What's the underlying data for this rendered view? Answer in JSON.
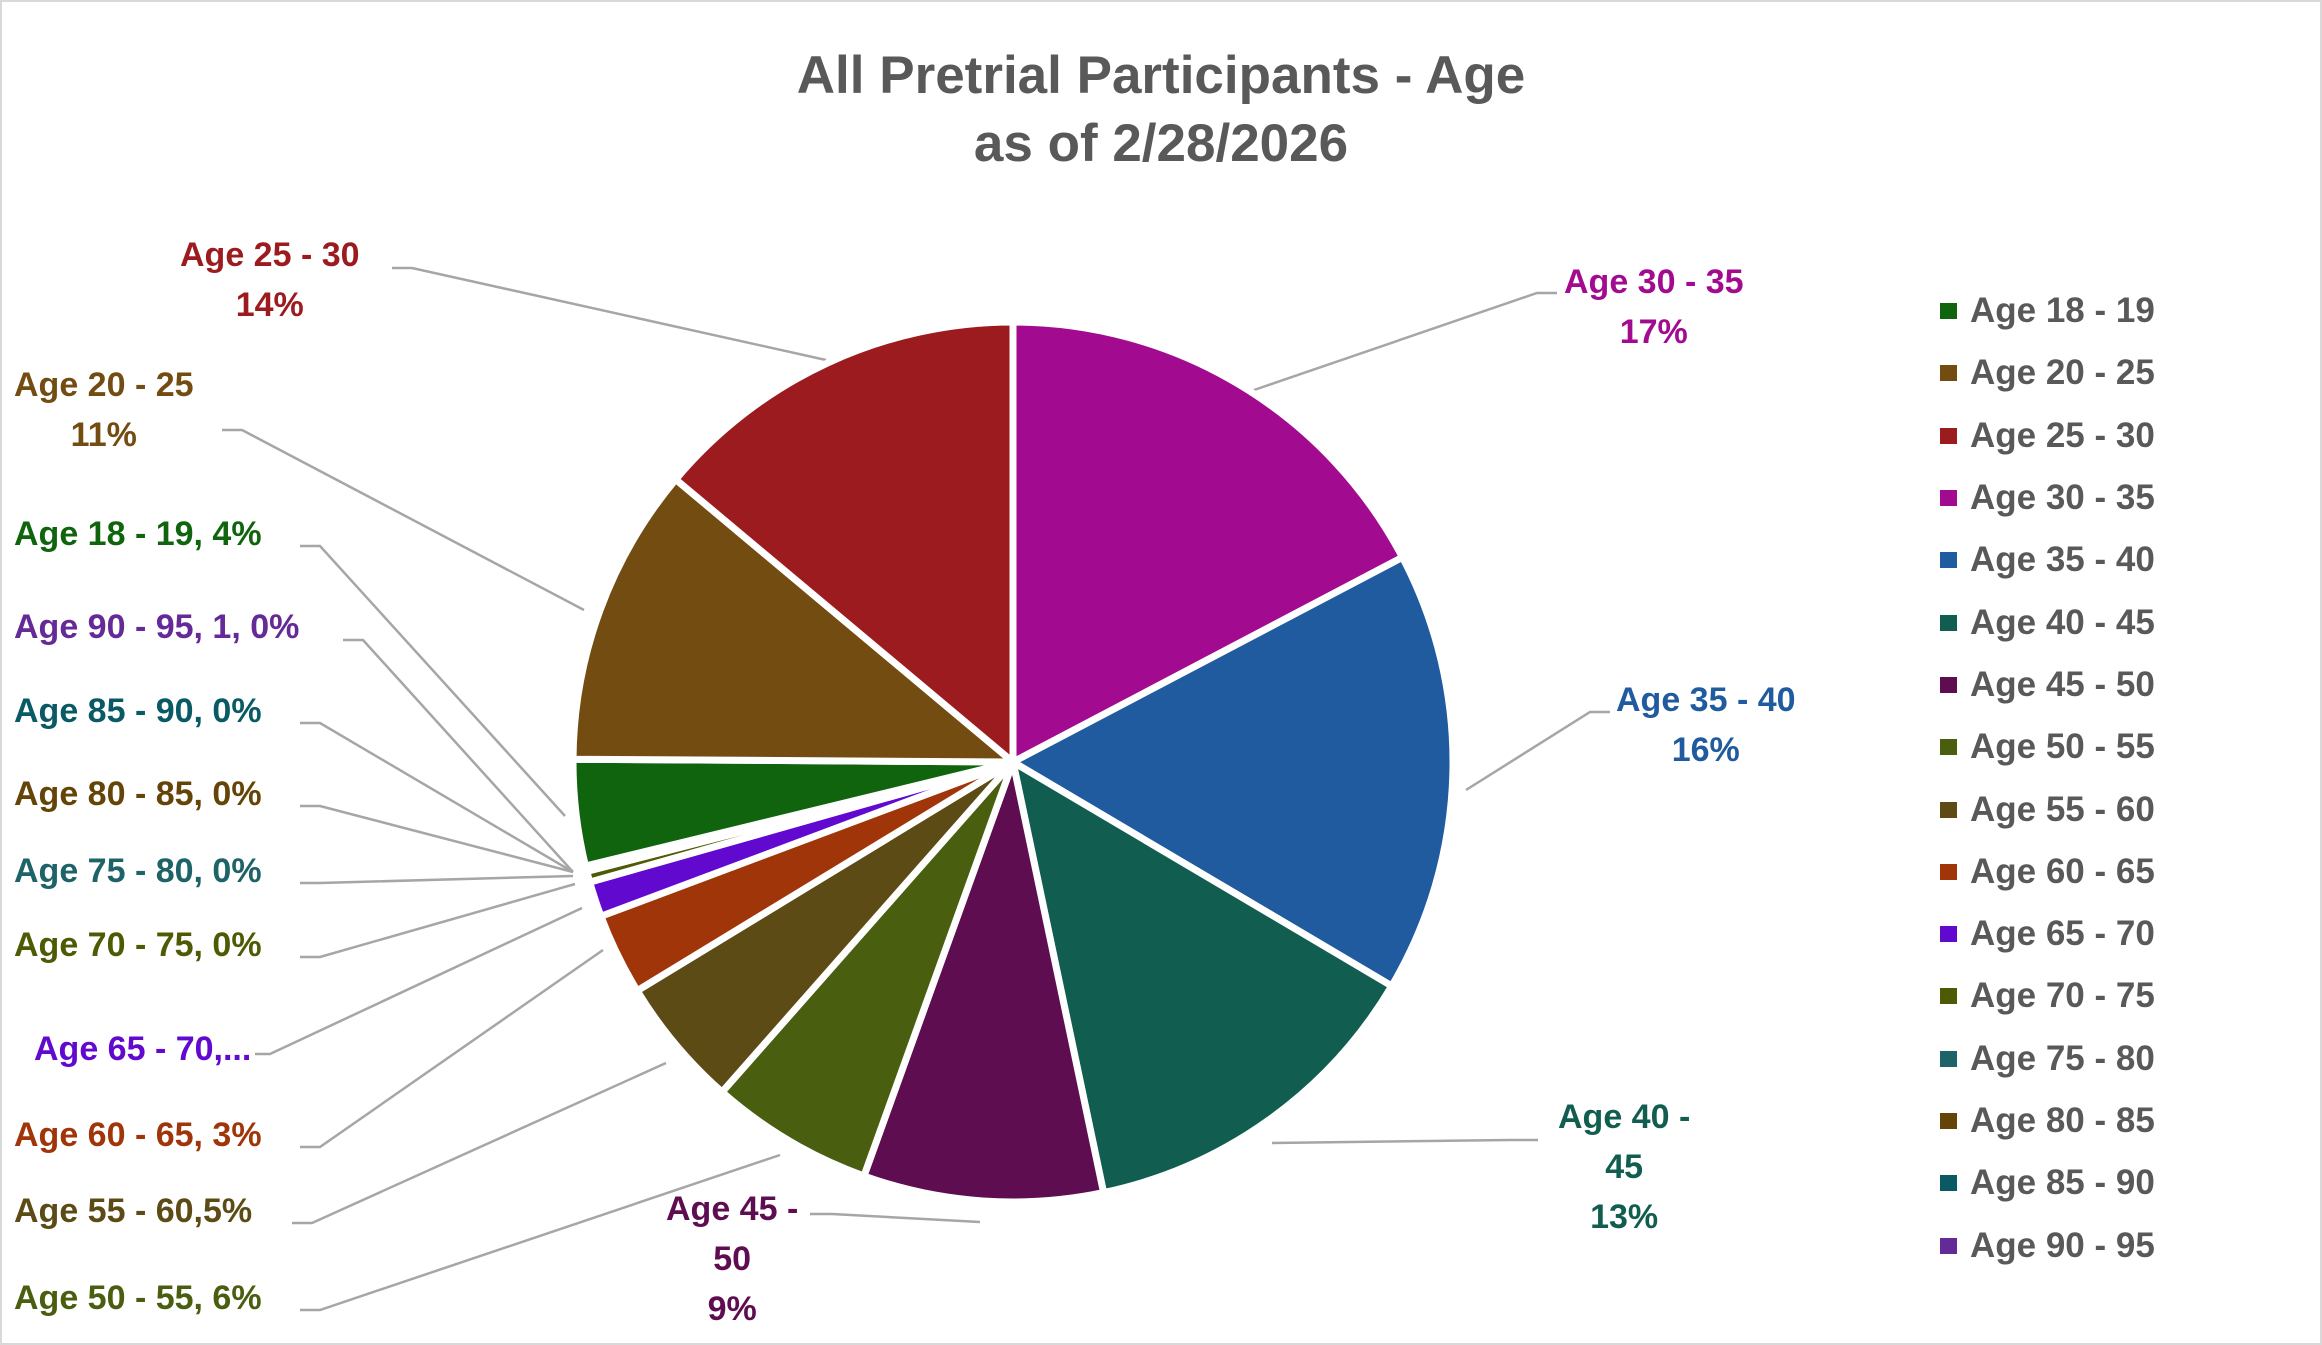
{
  "chart_data": {
    "type": "pie",
    "title": "All Pretrial Participants - Age",
    "subtitle": "as of 2/28/2026",
    "legend_position": "right",
    "start_angle_deg": 0,
    "direction": "clockwise",
    "slices": [
      {
        "name": "Age 30 - 35",
        "value": 17.3,
        "color": "#a20b8f"
      },
      {
        "name": "Age 35 - 40",
        "value": 16.2,
        "color": "#1f5b9e"
      },
      {
        "name": "Age 40 - 45",
        "value": 13.2,
        "color": "#115e50"
      },
      {
        "name": "Age 45 - 50",
        "value": 8.8,
        "color": "#5e0e50"
      },
      {
        "name": "Age 50 - 55",
        "value": 6.0,
        "color": "#4a5e10"
      },
      {
        "name": "Age 55 - 60",
        "value": 4.8,
        "color": "#5d4b15"
      },
      {
        "name": "Age 60 - 65",
        "value": 3.0,
        "color": "#a0350a"
      },
      {
        "name": "Age 65 - 70",
        "value": 1.3,
        "color": "#6209d0"
      },
      {
        "name": "Age 70 - 75",
        "value": 0.4,
        "color": "#4f5a05"
      },
      {
        "name": "Age 75 - 80",
        "value": 0.05,
        "color": "#1d6368"
      },
      {
        "name": "Age 80 - 85",
        "value": 0.05,
        "color": "#654408"
      },
      {
        "name": "Age 85 - 90",
        "value": 0.05,
        "color": "#0a5a66"
      },
      {
        "name": "Age 90 - 95",
        "value": 0.05,
        "color": "#642a97"
      },
      {
        "name": "Age 18 - 19",
        "value": 3.9,
        "color": "#10640d"
      },
      {
        "name": "Age 20 - 25",
        "value": 11.0,
        "color": "#734c11"
      },
      {
        "name": "Age 25 - 30",
        "value": 13.9,
        "color": "#9c1b1f"
      }
    ],
    "data_labels": [
      {
        "series": "Age 25 - 30",
        "lines": [
          "Age 25 - 30",
          "14%"
        ]
      },
      {
        "series": "Age 20 - 25",
        "lines": [
          "Age 20 - 25",
          "11%"
        ]
      },
      {
        "series": "Age 18 - 19",
        "lines": [
          "Age 18 - 19, 4%"
        ]
      },
      {
        "series": "Age 90 - 95",
        "lines": [
          "Age 90 - 95, 1, 0%"
        ]
      },
      {
        "series": "Age 85 - 90",
        "lines": [
          "Age 85 - 90, 0%"
        ]
      },
      {
        "series": "Age 80 - 85",
        "lines": [
          "Age 80 - 85, 0%"
        ]
      },
      {
        "series": "Age 75 - 80",
        "lines": [
          "Age 75 - 80, 0%"
        ]
      },
      {
        "series": "Age 70 - 75",
        "lines": [
          "Age 70 - 75, 0%"
        ]
      },
      {
        "series": "Age 65 - 70",
        "lines": [
          "Age 65 - 70,..."
        ]
      },
      {
        "series": "Age 60 - 65",
        "lines": [
          "Age 60 - 65, 3%"
        ]
      },
      {
        "series": "Age 55 - 60",
        "lines": [
          "Age 55 - 60,5%"
        ]
      },
      {
        "series": "Age 50 - 55",
        "lines": [
          "Age 50 - 55, 6%"
        ]
      },
      {
        "series": "Age 45 - 50",
        "lines": [
          "Age 45 -",
          "50",
          "9%"
        ]
      },
      {
        "series": "Age 40 - 45",
        "lines": [
          "Age 40 -",
          "45",
          "13%"
        ]
      },
      {
        "series": "Age 35 - 40",
        "lines": [
          "Age 35 - 40",
          "16%"
        ]
      },
      {
        "series": "Age 30 - 35",
        "lines": [
          "Age 30 - 35",
          "17%"
        ]
      }
    ]
  },
  "title": {
    "line1": "All Pretrial Participants - Age",
    "line2": "as of 2/28/2026"
  },
  "labels": {
    "age_25_30": {
      "line1": "Age 25 - 30",
      "line2": "14%",
      "color": "#9c1b1f"
    },
    "age_20_25": {
      "line1": "Age 20 - 25",
      "line2": "11%",
      "color": "#734c11"
    },
    "age_18_19": {
      "text": "Age 18 - 19, 4%",
      "color": "#10640d"
    },
    "age_90_95": {
      "text": "Age 90 - 95, 1, 0%",
      "color": "#642a97"
    },
    "age_85_90": {
      "text": "Age 85 - 90, 0%",
      "color": "#0a5a66"
    },
    "age_80_85": {
      "text": "Age 80 - 85, 0%",
      "color": "#654408"
    },
    "age_75_80": {
      "text": "Age 75 - 80, 0%",
      "color": "#1d6368"
    },
    "age_70_75": {
      "text": "Age 70 - 75, 0%",
      "color": "#4f5a05"
    },
    "age_65_70": {
      "text": "Age 65 - 70,...",
      "color": "#6209d0"
    },
    "age_60_65": {
      "text": "Age 60 - 65, 3%",
      "color": "#a0350a"
    },
    "age_55_60": {
      "text": "Age 55 - 60,5%",
      "color": "#5d4b15"
    },
    "age_50_55": {
      "text": "Age 50 - 55, 6%",
      "color": "#4a5e10"
    },
    "age_45_50": {
      "line1": "Age 45 -",
      "line2": "50",
      "line3": "9%",
      "color": "#5e0e50"
    },
    "age_40_45": {
      "line1": "Age 40 -",
      "line2": "45",
      "line3": "13%",
      "color": "#115e50"
    },
    "age_35_40": {
      "line1": "Age 35 - 40",
      "line2": "16%",
      "color": "#1f5b9e"
    },
    "age_30_35": {
      "line1": "Age 30 - 35",
      "line2": "17%",
      "color": "#a20b8f"
    }
  },
  "legend": {
    "items": [
      {
        "label": "Age 18 - 19",
        "color": "#10640d"
      },
      {
        "label": "Age 20 - 25",
        "color": "#734c11"
      },
      {
        "label": "Age 25 - 30",
        "color": "#9c1b1f"
      },
      {
        "label": "Age 30 - 35",
        "color": "#a20b8f"
      },
      {
        "label": "Age 35 - 40",
        "color": "#1f5b9e"
      },
      {
        "label": "Age 40 - 45",
        "color": "#115e50"
      },
      {
        "label": "Age 45 - 50",
        "color": "#5e0e50"
      },
      {
        "label": "Age 50 - 55",
        "color": "#4a5e10"
      },
      {
        "label": "Age 55 - 60",
        "color": "#5d4b15"
      },
      {
        "label": "Age 60 - 65",
        "color": "#a0350a"
      },
      {
        "label": "Age 65 - 70",
        "color": "#6209d0"
      },
      {
        "label": "Age 70 - 75",
        "color": "#4f5a05"
      },
      {
        "label": "Age 75 - 80",
        "color": "#1d6368"
      },
      {
        "label": "Age 80 - 85",
        "color": "#654408"
      },
      {
        "label": "Age 85 - 90",
        "color": "#0a5a66"
      },
      {
        "label": "Age 90 - 95",
        "color": "#642a97"
      }
    ]
  },
  "colors": {
    "title_text": "#595959",
    "legend_text": "#595959",
    "leader_line": "#a6a6a6",
    "border": "#d9d9d9"
  }
}
